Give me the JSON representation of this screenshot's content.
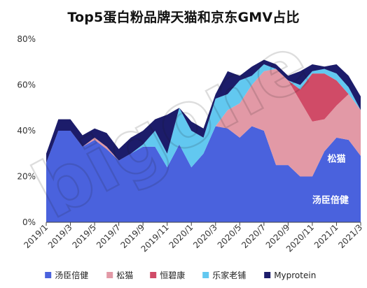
{
  "chart_data": {
    "type": "area",
    "stacked": true,
    "title": "Top5蛋白粉品牌天猫和京东GMV占比",
    "xlabel": "",
    "ylabel": "",
    "ylim": [
      0,
      80
    ],
    "yticks": [
      "0%",
      "20%",
      "40%",
      "60%",
      "80%"
    ],
    "x": [
      "2019/1",
      "2019/2",
      "2019/3",
      "2019/4",
      "2019/5",
      "2019/6",
      "2019/7",
      "2019/8",
      "2019/9",
      "2019/10",
      "2019/11",
      "2019/12",
      "2020/1",
      "2020/2",
      "2020/3",
      "2020/4",
      "2020/5",
      "2020/6",
      "2020/7",
      "2020/8",
      "2020/9",
      "2020/10",
      "2020/11",
      "2020/12",
      "2021/1",
      "2021/2",
      "2021/3"
    ],
    "xtick_labels": [
      "2019/1",
      "2019/3",
      "2019/5",
      "2019/7",
      "2019/9",
      "2019/11",
      "2020/1",
      "2020/3",
      "2020/5",
      "2020/7",
      "2020/9",
      "2020/11",
      "2021/1",
      "2021/3"
    ],
    "series": [
      {
        "name": "汤臣倍健",
        "color": "#4a62dd",
        "values": [
          26,
          40,
          40,
          33,
          36,
          32,
          27,
          30,
          33,
          33,
          24,
          34,
          24,
          30,
          42,
          41,
          37,
          42,
          40,
          25,
          25,
          20,
          20,
          31,
          37,
          36,
          29
        ]
      },
      {
        "name": "松猫",
        "color": "#e299a6",
        "values": [
          0,
          0,
          0,
          0,
          1,
          1,
          0,
          0,
          0,
          0,
          0,
          0,
          0,
          0,
          0,
          8,
          15,
          18,
          26,
          42,
          37,
          33,
          24,
          14,
          14,
          20,
          20
        ]
      },
      {
        "name": "恒碧康",
        "color": "#d04b67",
        "values": [
          0,
          0,
          0,
          0,
          0,
          0,
          0,
          0,
          0,
          0,
          0,
          0,
          0,
          0,
          0,
          0,
          0,
          0,
          0,
          0,
          0,
          5,
          21,
          20,
          11,
          0,
          0
        ]
      },
      {
        "name": "乐家老铺",
        "color": "#62c8f0",
        "values": [
          0,
          0,
          0,
          0,
          0,
          0,
          0,
          0,
          1,
          7,
          6,
          16,
          16,
          7,
          12,
          7,
          10,
          4,
          3,
          0,
          0,
          2,
          1,
          2,
          3,
          3,
          0
        ]
      },
      {
        "name": "Myprotein",
        "color": "#1c1c6a",
        "values": [
          4,
          5,
          5,
          5,
          4,
          6,
          5,
          7,
          6,
          5,
          17,
          0,
          4,
          4,
          2,
          10,
          2,
          4,
          2,
          2,
          2,
          6,
          3,
          1,
          4,
          5,
          6
        ]
      }
    ],
    "area_labels": [
      {
        "series": "松猫",
        "text": "松猫",
        "x_index": 24,
        "y": 28
      },
      {
        "series": "汤臣倍健",
        "text": "汤臣倍健",
        "x_index": 23.5,
        "y": 10
      }
    ],
    "legend": {
      "position": "bottom"
    },
    "grid": false,
    "watermark": "bigone"
  }
}
